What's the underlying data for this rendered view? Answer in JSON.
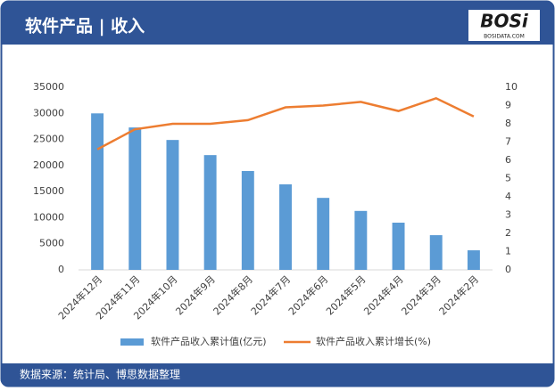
{
  "chart_data": {
    "type": "bar",
    "title": "软件产品 | 收入",
    "logo": {
      "name": "BOSi",
      "site": "BOSIDATA.COM"
    },
    "source": "数据来源：统计局、博思数据整理",
    "categories": [
      "2024年12月",
      "2024年11月",
      "2024年10月",
      "2024年9月",
      "2024年8月",
      "2024年7月",
      "2024年6月",
      "2024年5月",
      "2024年4月",
      "2024年3月",
      "2024年2月"
    ],
    "series": [
      {
        "name": "软件产品收入累计值(亿元)",
        "type": "bar",
        "axis": "y",
        "color": "#5b9bd5",
        "values": [
          30000,
          27300,
          24900,
          22000,
          18950,
          16400,
          13800,
          11300,
          9050,
          6650,
          3750
        ]
      },
      {
        "name": "软件产品收入累计增长(%)",
        "type": "line",
        "axis": "y2",
        "color": "#ed7d31",
        "values": [
          6.6,
          7.7,
          8.0,
          8.0,
          8.2,
          8.9,
          9.0,
          9.2,
          8.7,
          9.4,
          8.4
        ]
      }
    ],
    "ylim": [
      0,
      35000
    ],
    "yticks": [
      0,
      5000,
      10000,
      15000,
      20000,
      25000,
      30000,
      35000
    ],
    "y2lim": [
      0,
      10
    ],
    "y2ticks": [
      0,
      1,
      2,
      3,
      4,
      5,
      6,
      7,
      8,
      9,
      10
    ],
    "legend": "bottom"
  }
}
